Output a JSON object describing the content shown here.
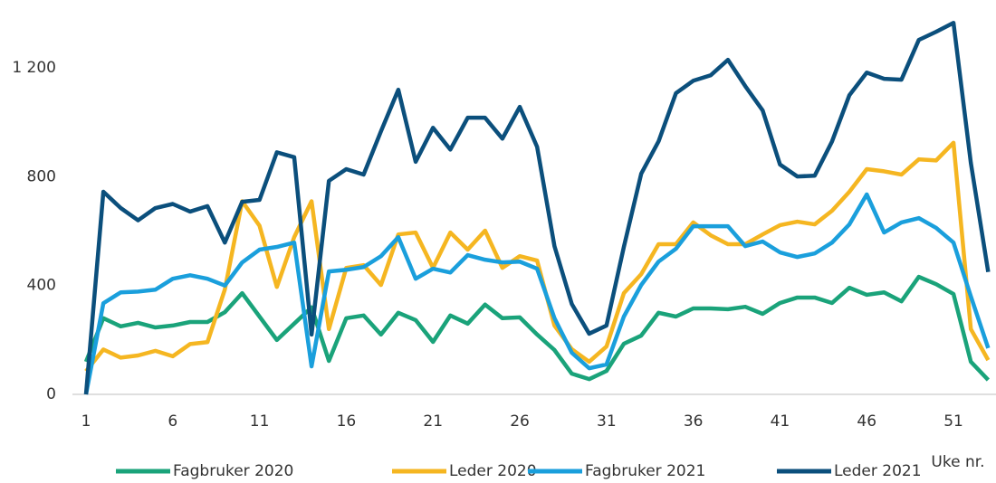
{
  "chart_data": {
    "type": "line",
    "x_label": "Uke nr.",
    "x": [
      1,
      2,
      3,
      4,
      5,
      6,
      7,
      8,
      9,
      10,
      11,
      12,
      13,
      14,
      15,
      16,
      17,
      18,
      19,
      20,
      21,
      22,
      23,
      24,
      25,
      26,
      27,
      28,
      29,
      30,
      31,
      32,
      33,
      34,
      35,
      36,
      37,
      38,
      39,
      40,
      41,
      42,
      43,
      44,
      45,
      46,
      47,
      48,
      49,
      50,
      51,
      52,
      53
    ],
    "xlim": [
      1,
      53.45
    ],
    "xticks": [
      1,
      6,
      11,
      16,
      21,
      26,
      31,
      36,
      41,
      46,
      51
    ],
    "ylim": [
      0,
      1400
    ],
    "yticks": [
      0,
      400,
      800,
      {
        "value": 1200,
        "label": "1 200"
      }
    ],
    "grid": false,
    "legend": "bottom",
    "series": [
      {
        "name": "Fagbruker 2020",
        "color": "#1aa37a",
        "values": [
          120,
          280,
          250,
          263,
          246,
          253,
          266,
          266,
          302,
          372,
          286,
          200,
          260,
          320,
          123,
          280,
          290,
          220,
          300,
          273,
          193,
          290,
          260,
          330,
          280,
          283,
          220,
          163,
          76,
          56,
          86,
          186,
          216,
          300,
          286,
          316,
          316,
          313,
          322,
          296,
          336,
          356,
          356,
          336,
          392,
          366,
          375,
          342,
          432,
          405,
          369,
          120,
          53
        ]
      },
      {
        "name": "Leder 2020",
        "color": "#f5b621",
        "values": [
          85,
          165,
          135,
          143,
          160,
          140,
          185,
          192,
          385,
          710,
          620,
          395,
          578,
          710,
          240,
          465,
          475,
          402,
          588,
          595,
          465,
          595,
          532,
          602,
          465,
          508,
          492,
          253,
          166,
          120,
          176,
          372,
          442,
          552,
          552,
          632,
          585,
          552,
          552,
          588,
          622,
          635,
          625,
          675,
          745,
          828,
          820,
          808,
          864,
          860,
          925,
          240,
          126
        ]
      },
      {
        "name": "Fagbruker 2021",
        "color": "#1a9fdc",
        "values": [
          0,
          335,
          375,
          378,
          385,
          425,
          438,
          425,
          400,
          485,
          532,
          542,
          558,
          103,
          452,
          458,
          468,
          508,
          578,
          425,
          462,
          448,
          512,
          495,
          485,
          488,
          462,
          280,
          153,
          96,
          110,
          286,
          402,
          488,
          535,
          618,
          618,
          618,
          545,
          562,
          522,
          505,
          518,
          558,
          625,
          735,
          595,
          632,
          648,
          612,
          558,
          360,
          170
        ]
      },
      {
        "name": "Leder 2021",
        "color": "#0b4f7c",
        "values": [
          0,
          745,
          685,
          640,
          685,
          700,
          672,
          692,
          558,
          708,
          715,
          890,
          872,
          220,
          785,
          828,
          808,
          967,
          1120,
          855,
          980,
          900,
          1017,
          1017,
          940,
          1057,
          910,
          545,
          332,
          223,
          253,
          542,
          811,
          930,
          1107,
          1153,
          1173,
          1230,
          1133,
          1044,
          845,
          801,
          804,
          930,
          1100,
          1183,
          1160,
          1157,
          1303,
          1333,
          1366,
          851,
          450
        ]
      }
    ]
  }
}
